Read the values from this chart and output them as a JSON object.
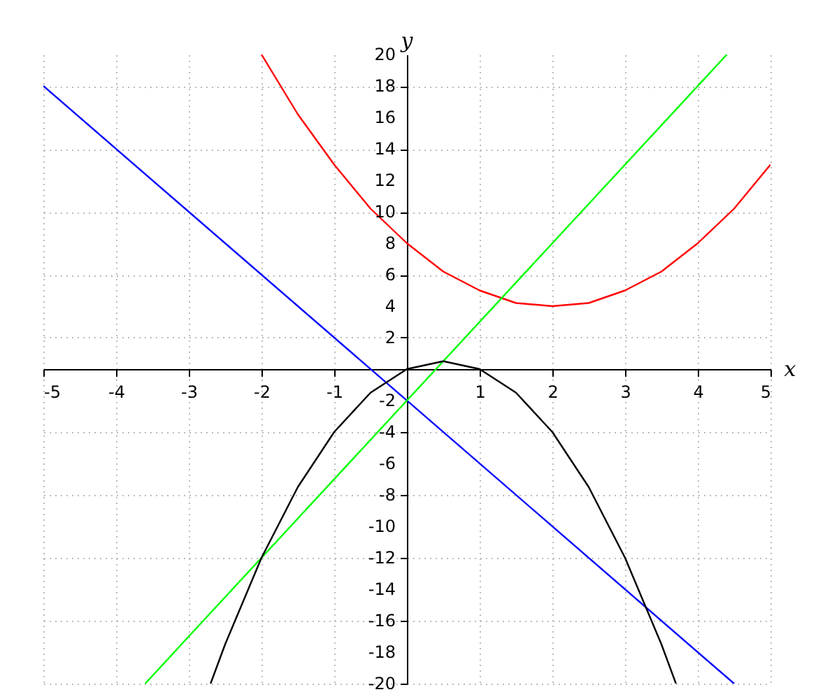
{
  "chart_data": {
    "type": "line",
    "xlabel": "x",
    "ylabel": "y",
    "xlim": [
      -5,
      5
    ],
    "ylim": [
      -20,
      20
    ],
    "xticks": [
      -5,
      -4,
      -3,
      -2,
      -1,
      1,
      2,
      3,
      4,
      5
    ],
    "yticks": [
      -20,
      -18,
      -16,
      -14,
      -12,
      -10,
      -8,
      -6,
      -4,
      -2,
      2,
      4,
      6,
      8,
      10,
      12,
      14,
      16,
      18,
      20
    ],
    "grid": true,
    "series": [
      {
        "color": "#ff0000",
        "x": [
          -2,
          -1.5,
          -1,
          -0.5,
          0,
          0.5,
          1,
          1.5,
          2,
          2.5,
          3,
          3.5,
          4,
          4.5,
          5
        ],
        "values": [
          20,
          16.2,
          13,
          10.2,
          8,
          6.2,
          5,
          4.2,
          4,
          4.2,
          5,
          6.2,
          8,
          10.2,
          13
        ]
      },
      {
        "color": "#0000ff",
        "x": [
          -5,
          4.5
        ],
        "values": [
          18,
          -20
        ]
      },
      {
        "color": "#00ff00",
        "x": [
          -3.6,
          4.4
        ],
        "values": [
          -20,
          20
        ]
      },
      {
        "color": "#000000",
        "x": [
          -2.7,
          -2.5,
          -2,
          -1.5,
          -1,
          -0.5,
          0,
          0.5,
          1,
          1.5,
          2,
          2.5,
          3,
          3.5,
          3.7
        ],
        "values": [
          -20,
          -17.5,
          -12,
          -7.5,
          -4,
          -1.5,
          0,
          0.5,
          0,
          -1.5,
          -4,
          -7.5,
          -12,
          -17.5,
          -20
        ]
      }
    ]
  }
}
